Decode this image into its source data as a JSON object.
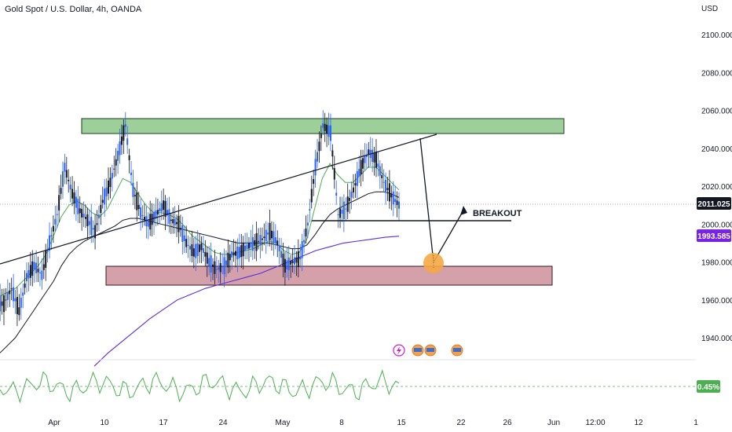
{
  "header": {
    "title": "Gold Spot / U.S. Dollar, 4h, OANDA",
    "currency": "USD"
  },
  "chart_data": {
    "type": "candlestick",
    "y_axis": {
      "ticks": [
        "2100.000",
        "2080.000",
        "2060.000",
        "2040.000",
        "2020.000",
        "2000.000",
        "1980.000",
        "1960.000",
        "1940.000"
      ],
      "tick_values": [
        2100,
        2080,
        2060,
        2040,
        2020,
        2000,
        1980,
        1960,
        1940
      ],
      "range": [
        1928,
        2114
      ]
    },
    "x_axis": {
      "ticks": [
        "Apr",
        "10",
        "17",
        "24",
        "May",
        "8",
        "15",
        "22",
        "26",
        "Jun",
        "12:00",
        "12",
        "1"
      ]
    },
    "price_labels": {
      "last_price": "2011.025",
      "ma_value": "1993.585",
      "oscillator_value": "0.45%"
    },
    "annotations": {
      "breakout_label": "BREAKOUT"
    },
    "series": [
      {
        "values_close": [
          1958,
          1966,
          1954,
          1972,
          1978,
          1973,
          1990,
          2005,
          2030,
          2016,
          2007,
          2002,
          1996,
          2012,
          2022,
          2036,
          2052,
          2018,
          2006,
          2000,
          2005,
          2010,
          2002,
          2000,
          1990,
          1985,
          1988,
          1980,
          1976,
          1978,
          1984,
          1985,
          1988,
          1990,
          1992,
          1996,
          1990,
          1978,
          1980,
          1982,
          2000,
          2030,
          2052,
          2048,
          2005,
          2008,
          2018,
          2030,
          2038,
          2034,
          2022,
          2015,
          2010
        ]
      },
      {
        "ma_short_approx": [
          1962,
          1964,
          1966,
          1970,
          1974,
          1978,
          1984,
          1994,
          2004,
          2010,
          2012,
          2010,
          2006,
          2004,
          2008,
          2016,
          2024,
          2022,
          2016,
          2010,
          2006,
          2006,
          2005,
          2003,
          1999,
          1994,
          1991,
          1988,
          1985,
          1984,
          1984,
          1985,
          1986,
          1987,
          1989,
          1991,
          1990,
          1986,
          1984,
          1985,
          1992,
          2008,
          2024,
          2032,
          2026,
          2022,
          2022,
          2026,
          2030,
          2030,
          2026,
          2022,
          2018
        ]
      },
      {
        "ma_long_approx": [
          1932,
          1936,
          1940,
          1946,
          1952,
          1958,
          1964,
          1970,
          1978,
          1984,
          1988,
          1991,
          1993,
          1995,
          1997,
          1999,
          2002,
          2003,
          2003,
          2002,
          2001,
          2000,
          1999,
          1998,
          1997,
          1996,
          1995,
          1994,
          1993,
          1992,
          1991,
          1990,
          1990,
          1990,
          1990,
          1990,
          1989,
          1988,
          1987,
          1987,
          1989,
          1994,
          2000,
          2005,
          2008,
          2010,
          2012,
          2014,
          2016,
          2017,
          2017,
          2016,
          2014
        ]
      },
      {
        "ma_200_approx": [
          1925,
          1932,
          1938,
          1944,
          1950,
          1955,
          1960,
          1963,
          1966,
          1968,
          1970,
          1972,
          1974,
          1977,
          1980,
          1983,
          1986,
          1988,
          1990,
          1991,
          1992,
          1993,
          1993.585
        ]
      }
    ],
    "zones": [
      {
        "name": "resistance",
        "color": "#2e8b3a"
      },
      {
        "name": "support",
        "color": "#a01030"
      }
    ]
  }
}
